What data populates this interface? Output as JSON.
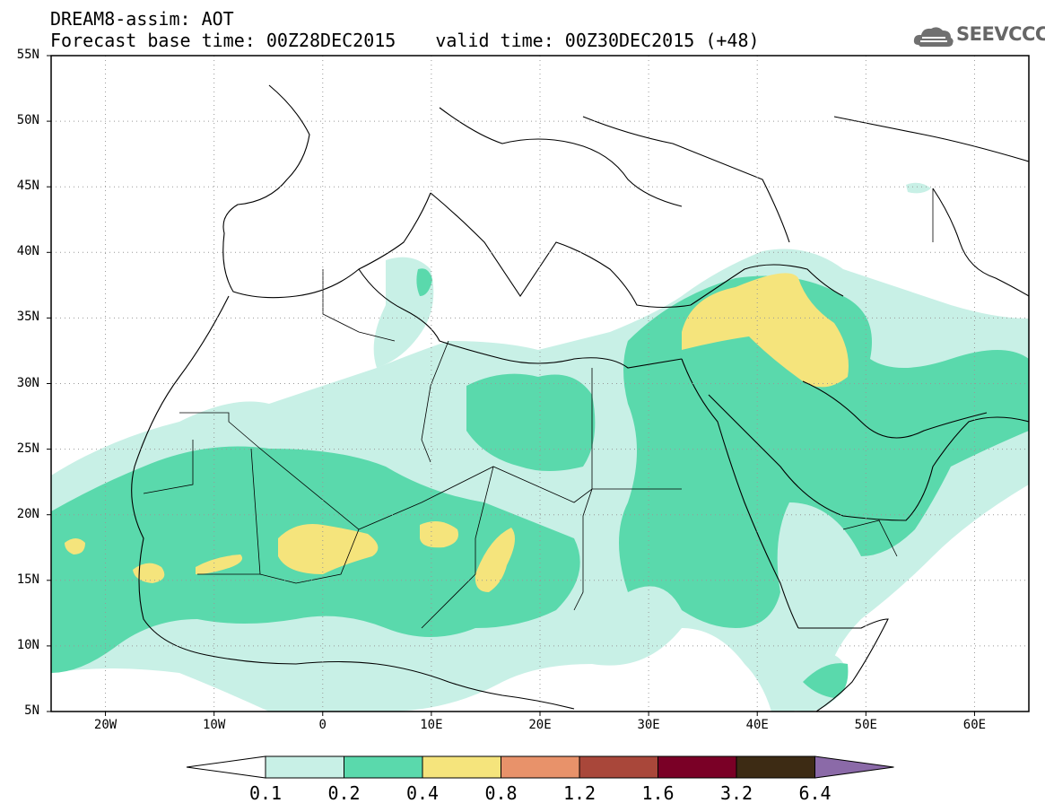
{
  "header": {
    "product": "DREAM8-assim: AOT",
    "base_time": "Forecast base time: 00Z28DEC2015",
    "valid_time": "valid time: 00Z30DEC2015 (+48)"
  },
  "logo": {
    "text": "SEEVCCC",
    "icon": "cloud-icon"
  },
  "map": {
    "projection": "lat-lon",
    "lon_range": [
      -25,
      65
    ],
    "lat_range": [
      5,
      55
    ],
    "lat_ticks": [
      "55N",
      "50N",
      "45N",
      "40N",
      "35N",
      "30N",
      "25N",
      "20N",
      "15N",
      "10N",
      "5N"
    ],
    "lon_ticks": [
      "20W",
      "10W",
      "0",
      "10E",
      "20E",
      "30E",
      "40E",
      "50E",
      "60E"
    ],
    "grid": "dotted"
  },
  "colorbar": {
    "labels": [
      "0.1",
      "0.2",
      "0.4",
      "0.8",
      "1.2",
      "1.6",
      "3.2",
      "6.4"
    ],
    "colors": [
      "#ffffff",
      "#c8f0e6",
      "#5ad9ac",
      "#f5e47c",
      "#e8926a",
      "#a9473a",
      "#7a0026",
      "#3d2b14",
      "#8b6aa8"
    ]
  }
}
